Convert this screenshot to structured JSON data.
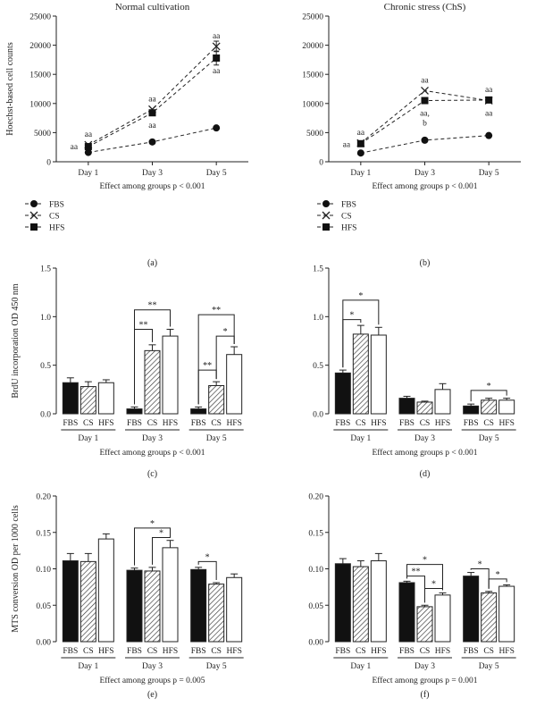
{
  "chart_data": [
    {
      "panel_label": "(a)",
      "type": "line",
      "title": "Normal cultivation",
      "ylabel": "Hoechst-based cell counts",
      "xlabel": "Effect among groups p < 0.001",
      "categories": [
        "Day 1",
        "Day 3",
        "Day 5"
      ],
      "ylim": [
        0,
        25000
      ],
      "yticks": [
        0,
        5000,
        10000,
        15000,
        20000,
        25000
      ],
      "series": [
        {
          "name": "FBS",
          "marker": "circle",
          "values": [
            1600,
            3400,
            5800
          ],
          "errors": [
            0,
            0,
            0
          ]
        },
        {
          "name": "CS",
          "marker": "x",
          "values": [
            2900,
            9000,
            19800
          ],
          "errors": [
            0,
            0,
            900
          ]
        },
        {
          "name": "HFS",
          "marker": "square",
          "values": [
            2600,
            8400,
            17800
          ],
          "errors": [
            0,
            0,
            1200
          ]
        }
      ],
      "annotations": [
        {
          "x": "Day 1",
          "text": "aa",
          "pos": "above-high"
        },
        {
          "x": "Day 1",
          "text": "aa",
          "pos": "left"
        },
        {
          "x": "Day 3",
          "text": "aa",
          "pos": "above-high"
        },
        {
          "x": "Day 3",
          "text": "aa",
          "pos": "below-low"
        },
        {
          "x": "Day 5",
          "text": "aa",
          "pos": "above-high"
        },
        {
          "x": "Day 5",
          "text": "aa",
          "pos": "below-low"
        }
      ],
      "legend": [
        "FBS",
        "CS",
        "HFS"
      ]
    },
    {
      "panel_label": "(b)",
      "type": "line",
      "title": "Chronic stress (ChS)",
      "ylabel": "",
      "xlabel": "Effect among groups p < 0.001",
      "categories": [
        "Day 1",
        "Day 3",
        "Day 5"
      ],
      "ylim": [
        0,
        25000
      ],
      "yticks": [
        0,
        5000,
        10000,
        15000,
        20000,
        25000
      ],
      "series": [
        {
          "name": "FBS",
          "marker": "circle",
          "values": [
            1500,
            3700,
            4500
          ],
          "errors": [
            0,
            0,
            0
          ]
        },
        {
          "name": "CS",
          "marker": "x",
          "values": [
            3200,
            12200,
            10500
          ],
          "errors": [
            0,
            0,
            0
          ]
        },
        {
          "name": "HFS",
          "marker": "square",
          "values": [
            3100,
            10500,
            10600
          ],
          "errors": [
            0,
            0,
            0
          ]
        }
      ],
      "annotations": [
        {
          "x": "Day 1",
          "text": "aa",
          "pos": "above-high"
        },
        {
          "x": "Day 1",
          "text": "aa",
          "pos": "left"
        },
        {
          "x": "Day 3",
          "text": "aa",
          "pos": "above-high"
        },
        {
          "x": "Day 3",
          "text": "aa,",
          "pos": "below-low"
        },
        {
          "x": "Day 3",
          "text": "b",
          "pos": "below-low2"
        },
        {
          "x": "Day 5",
          "text": "aa",
          "pos": "above-high"
        },
        {
          "x": "Day 5",
          "text": "aa",
          "pos": "below-low"
        }
      ],
      "legend": [
        "FBS",
        "CS",
        "HFS"
      ]
    },
    {
      "panel_label": "(c)",
      "type": "bar",
      "ylabel": "BrdU incorporation OD 450 nm",
      "xlabel": "Effect among groups p < 0.001",
      "groups": [
        "Day 1",
        "Day 3",
        "Day 5"
      ],
      "bar_labels": [
        "FBS",
        "CS",
        "HFS"
      ],
      "ylim": [
        0,
        1.5
      ],
      "yticks": [
        "0.0",
        "0.5",
        "1.0",
        "1.5"
      ],
      "series": [
        {
          "name": "FBS",
          "values": [
            0.32,
            0.05,
            0.05
          ],
          "errors": [
            0.05,
            0.02,
            0.02
          ]
        },
        {
          "name": "CS",
          "values": [
            0.28,
            0.65,
            0.29
          ],
          "errors": [
            0.05,
            0.06,
            0.04
          ]
        },
        {
          "name": "HFS",
          "values": [
            0.32,
            0.8,
            0.61
          ],
          "errors": [
            0.03,
            0.07,
            0.08
          ]
        }
      ],
      "brackets": [
        {
          "group": 1,
          "from": 0,
          "to": 2,
          "text": "**",
          "level": 1.07
        },
        {
          "group": 1,
          "from": 0,
          "to": 1,
          "text": "**",
          "level": 0.87
        },
        {
          "group": 2,
          "from": 0,
          "to": 2,
          "text": "**",
          "level": 1.02
        },
        {
          "group": 2,
          "from": 1,
          "to": 2,
          "text": "*",
          "level": 0.8
        },
        {
          "group": 2,
          "from": 0,
          "to": 1,
          "text": "**",
          "level": 0.45
        }
      ]
    },
    {
      "panel_label": "(d)",
      "type": "bar",
      "ylabel": "",
      "xlabel": "Effect among groups p < 0.001",
      "groups": [
        "Day 1",
        "Day 3",
        "Day 5"
      ],
      "bar_labels": [
        "FBS",
        "CS",
        "HFS"
      ],
      "ylim": [
        0,
        1.5
      ],
      "yticks": [
        "0.0",
        "0.5",
        "1.0",
        "1.5"
      ],
      "series": [
        {
          "name": "FBS",
          "values": [
            0.42,
            0.16,
            0.08
          ],
          "errors": [
            0.03,
            0.02,
            0.02
          ]
        },
        {
          "name": "CS",
          "values": [
            0.82,
            0.12,
            0.14
          ],
          "errors": [
            0.09,
            0.01,
            0.02
          ]
        },
        {
          "name": "HFS",
          "values": [
            0.81,
            0.25,
            0.14
          ],
          "errors": [
            0.08,
            0.06,
            0.02
          ]
        }
      ],
      "brackets": [
        {
          "group": 0,
          "from": 0,
          "to": 2,
          "text": "*",
          "level": 1.17
        },
        {
          "group": 0,
          "from": 0,
          "to": 1,
          "text": "*",
          "level": 0.97
        },
        {
          "group": 2,
          "from": 0,
          "to": 2,
          "text": "*",
          "level": 0.24
        }
      ]
    },
    {
      "panel_label": "(e)",
      "type": "bar",
      "ylabel": "MTS conversion OD per 1000 cells",
      "xlabel": "Effect among groups p = 0.005",
      "groups": [
        "Day 1",
        "Day 3",
        "Day 5"
      ],
      "bar_labels": [
        "FBS",
        "CS",
        "HFS"
      ],
      "ylim": [
        0,
        0.2
      ],
      "yticks": [
        "0.00",
        "0.05",
        "0.10",
        "0.15",
        "0.20"
      ],
      "series": [
        {
          "name": "FBS",
          "values": [
            0.111,
            0.098,
            0.099
          ],
          "errors": [
            0.01,
            0.003,
            0.003
          ]
        },
        {
          "name": "CS",
          "values": [
            0.11,
            0.097,
            0.079
          ],
          "errors": [
            0.011,
            0.005,
            0.002
          ]
        },
        {
          "name": "HFS",
          "values": [
            0.141,
            0.129,
            0.088
          ],
          "errors": [
            0.007,
            0.01,
            0.005
          ]
        }
      ],
      "brackets": [
        {
          "group": 1,
          "from": 0,
          "to": 2,
          "text": "*",
          "level": 0.156
        },
        {
          "group": 1,
          "from": 1,
          "to": 2,
          "text": "*",
          "level": 0.143
        },
        {
          "group": 2,
          "from": 0,
          "to": 1,
          "text": "*",
          "level": 0.11
        }
      ]
    },
    {
      "panel_label": "(f)",
      "type": "bar",
      "ylabel": "",
      "xlabel": "Effect among groups p = 0.001",
      "groups": [
        "Day 1",
        "Day 3",
        "Day 5"
      ],
      "bar_labels": [
        "FBS",
        "CS",
        "HFS"
      ],
      "ylim": [
        0,
        0.2
      ],
      "yticks": [
        "0.00",
        "0.05",
        "0.10",
        "0.15",
        "0.20"
      ],
      "series": [
        {
          "name": "FBS",
          "values": [
            0.107,
            0.081,
            0.09
          ],
          "errors": [
            0.007,
            0.002,
            0.005
          ]
        },
        {
          "name": "CS",
          "values": [
            0.103,
            0.048,
            0.067
          ],
          "errors": [
            0.008,
            0.002,
            0.002
          ]
        },
        {
          "name": "HFS",
          "values": [
            0.111,
            0.064,
            0.076
          ],
          "errors": [
            0.01,
            0.003,
            0.002
          ]
        }
      ],
      "brackets": [
        {
          "group": 1,
          "from": 0,
          "to": 2,
          "text": "*",
          "level": 0.106
        },
        {
          "group": 1,
          "from": 0,
          "to": 1,
          "text": "**",
          "level": 0.09
        },
        {
          "group": 1,
          "from": 1,
          "to": 2,
          "text": "*",
          "level": 0.073
        },
        {
          "group": 2,
          "from": 0,
          "to": 1,
          "text": "*",
          "level": 0.1
        },
        {
          "group": 2,
          "from": 1,
          "to": 2,
          "text": "*",
          "level": 0.086
        }
      ]
    }
  ]
}
